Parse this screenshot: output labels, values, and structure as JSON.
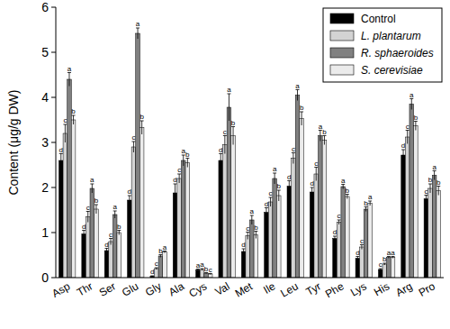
{
  "chart_data": {
    "type": "bar",
    "y_label": "Content (μg/g DW)",
    "categories": [
      "Asp",
      "Thr",
      "Ser",
      "Glu",
      "Gly",
      "Ala",
      "Cys",
      "Val",
      "Met",
      "Ile",
      "Leu",
      "Tyr",
      "Phe",
      "Lys",
      "His",
      "Arg",
      "Pro"
    ],
    "ylim": [
      0,
      6
    ],
    "yticks": [
      0,
      1,
      2,
      3,
      4,
      5,
      6
    ],
    "legend": "top-right",
    "grid": false,
    "series": [
      {
        "name": "Control",
        "color": "#000000",
        "values": [
          2.6,
          0.97,
          0.6,
          1.72,
          0.03,
          1.88,
          0.17,
          2.6,
          0.58,
          1.45,
          2.03,
          1.9,
          0.87,
          0.43,
          0.18,
          2.72,
          1.75
        ],
        "errors": [
          0.15,
          0.08,
          0.05,
          0.1,
          0.01,
          0.2,
          0.02,
          0.15,
          0.06,
          0.1,
          0.12,
          0.1,
          0.05,
          0.04,
          0.02,
          0.12,
          0.08
        ],
        "letters": [
          "d",
          "d",
          "d",
          "d",
          "d",
          "d",
          "a",
          "d",
          "d",
          "d",
          "d",
          "d",
          "d",
          "d",
          "c",
          "d",
          "c"
        ]
      },
      {
        "name": "L. plantarum",
        "color": "#d3d3d3",
        "values": [
          3.2,
          1.35,
          0.8,
          2.9,
          0.2,
          2.2,
          0.18,
          2.95,
          0.93,
          1.68,
          2.65,
          2.3,
          1.23,
          0.68,
          0.3,
          3.12,
          1.98
        ],
        "errors": [
          0.2,
          0.12,
          0.07,
          0.12,
          0.02,
          0.1,
          0.02,
          0.2,
          0.08,
          0.1,
          0.12,
          0.15,
          0.05,
          0.05,
          0.02,
          0.15,
          0.1
        ],
        "letters": [
          "c",
          "c",
          "c",
          "c",
          "c",
          "c",
          "a",
          "c",
          "c",
          "c",
          "c",
          "c",
          "c",
          "c",
          "b",
          "c",
          "b"
        ]
      },
      {
        "name": "R. sphaeroides",
        "color": "#808080",
        "values": [
          4.4,
          1.98,
          1.4,
          5.42,
          0.48,
          2.6,
          0.1,
          3.78,
          1.28,
          2.2,
          4.05,
          3.15,
          2.02,
          1.52,
          0.45,
          3.85,
          2.27
        ],
        "errors": [
          0.15,
          0.1,
          0.08,
          0.12,
          0.03,
          0.12,
          0.01,
          0.3,
          0.1,
          0.12,
          0.12,
          0.12,
          0.05,
          0.05,
          0.02,
          0.12,
          0.1
        ],
        "letters": [
          "a",
          "a",
          "a",
          "a",
          "b",
          "a",
          "b",
          "a",
          "a",
          "a",
          "a",
          "a",
          "a",
          "b",
          "a",
          "a",
          "a"
        ]
      },
      {
        "name": "S. cerevisiae",
        "color": "#ebebeb",
        "values": [
          3.5,
          1.52,
          1.0,
          3.33,
          0.57,
          2.55,
          0.08,
          3.15,
          0.95,
          1.82,
          3.53,
          3.05,
          1.8,
          1.65,
          0.45,
          3.37,
          1.93
        ],
        "errors": [
          0.1,
          0.1,
          0.05,
          0.15,
          0.02,
          0.1,
          0.01,
          0.2,
          0.08,
          0.12,
          0.15,
          0.1,
          0.05,
          0.05,
          0.02,
          0.1,
          0.1
        ],
        "letters": [
          "b",
          "b",
          "b",
          "b",
          "a",
          "b",
          "c",
          "b",
          "b",
          "b",
          "b",
          "b",
          "b",
          "a",
          "a",
          "b",
          "b"
        ]
      }
    ]
  }
}
